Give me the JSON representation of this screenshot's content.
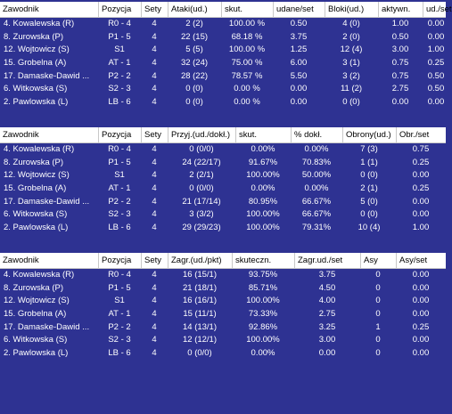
{
  "tables": [
    {
      "headers": [
        "Zawodnik",
        "Pozycja",
        "Sety",
        "Ataki(ud.)",
        "skut.",
        "udane/set",
        "Bloki(ud.)",
        "aktywn.",
        "ud./set"
      ],
      "rows": [
        [
          "4. Kowalewska (R)",
          "R0 - 4",
          "4",
          "2 (2)",
          "100.00 %",
          "0.50",
          "4 (0)",
          "1.00",
          "0.00"
        ],
        [
          "8. Zurowska (P)",
          "P1 - 5",
          "4",
          "22 (15)",
          "68.18 %",
          "3.75",
          "2 (0)",
          "0.50",
          "0.00"
        ],
        [
          "12. Wojtowicz (S)",
          "S1",
          "4",
          "5 (5)",
          "100.00 %",
          "1.25",
          "12 (4)",
          "3.00",
          "1.00"
        ],
        [
          "15. Grobelna (A)",
          "AT - 1",
          "4",
          "32 (24)",
          "75.00 %",
          "6.00",
          "3 (1)",
          "0.75",
          "0.25"
        ],
        [
          "17. Damaske-Dawid ...",
          "P2 - 2",
          "4",
          "28 (22)",
          "78.57 %",
          "5.50",
          "3 (2)",
          "0.75",
          "0.50"
        ],
        [
          "6. Witkowska (S)",
          "S2 - 3",
          "4",
          "0 (0)",
          "0.00 %",
          "0.00",
          "11 (2)",
          "2.75",
          "0.50"
        ],
        [
          "2. Pawlowska (L)",
          "LB - 6",
          "4",
          "0 (0)",
          "0.00 %",
          "0.00",
          "0 (0)",
          "0.00",
          "0.00"
        ]
      ]
    },
    {
      "headers": [
        "Zawodnik",
        "Pozycja",
        "Sety",
        "Przyj.(ud./dokł.)",
        "skut.",
        "% dokł.",
        "Obrony(ud.)",
        "Obr./set"
      ],
      "rows": [
        [
          "4. Kowalewska (R)",
          "R0 - 4",
          "4",
          "0 (0/0)",
          "0.00%",
          "0.00%",
          "7 (3)",
          "0.75"
        ],
        [
          "8. Zurowska (P)",
          "P1 - 5",
          "4",
          "24 (22/17)",
          "91.67%",
          "70.83%",
          "1 (1)",
          "0.25"
        ],
        [
          "12. Wojtowicz (S)",
          "S1",
          "4",
          "2 (2/1)",
          "100.00%",
          "50.00%",
          "0 (0)",
          "0.00"
        ],
        [
          "15. Grobelna (A)",
          "AT - 1",
          "4",
          "0 (0/0)",
          "0.00%",
          "0.00%",
          "2 (1)",
          "0.25"
        ],
        [
          "17. Damaske-Dawid ...",
          "P2 - 2",
          "4",
          "21 (17/14)",
          "80.95%",
          "66.67%",
          "5 (0)",
          "0.00"
        ],
        [
          "6. Witkowska (S)",
          "S2 - 3",
          "4",
          "3 (3/2)",
          "100.00%",
          "66.67%",
          "0 (0)",
          "0.00"
        ],
        [
          "2. Pawlowska (L)",
          "LB - 6",
          "4",
          "29 (29/23)",
          "100.00%",
          "79.31%",
          "10 (4)",
          "1.00"
        ]
      ]
    },
    {
      "headers": [
        "Zawodnik",
        "Pozycja",
        "Sety",
        "Zagr.(ud./pkt)",
        "skuteczn.",
        "Zagr.ud./set",
        "Asy",
        "Asy/set"
      ],
      "rows": [
        [
          "4. Kowalewska (R)",
          "R0 - 4",
          "4",
          "16 (15/1)",
          "93.75%",
          "3.75",
          "0",
          "0.00"
        ],
        [
          "8. Zurowska (P)",
          "P1 - 5",
          "4",
          "21 (18/1)",
          "85.71%",
          "4.50",
          "0",
          "0.00"
        ],
        [
          "12. Wojtowicz (S)",
          "S1",
          "4",
          "16 (16/1)",
          "100.00%",
          "4.00",
          "0",
          "0.00"
        ],
        [
          "15. Grobelna (A)",
          "AT - 1",
          "4",
          "15 (11/1)",
          "73.33%",
          "2.75",
          "0",
          "0.00"
        ],
        [
          "17. Damaske-Dawid ...",
          "P2 - 2",
          "4",
          "14 (13/1)",
          "92.86%",
          "3.25",
          "1",
          "0.25"
        ],
        [
          "6. Witkowska (S)",
          "S2 - 3",
          "4",
          "12 (12/1)",
          "100.00%",
          "3.00",
          "0",
          "0.00"
        ],
        [
          "2. Pawlowska (L)",
          "LB - 6",
          "4",
          "0 (0/0)",
          "0.00%",
          "0.00",
          "0",
          "0.00"
        ]
      ]
    }
  ]
}
